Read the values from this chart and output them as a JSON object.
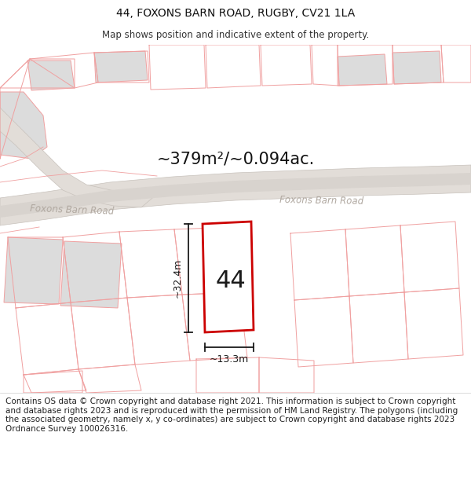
{
  "title": "44, FOXONS BARN ROAD, RUGBY, CV21 1LA",
  "subtitle": "Map shows position and indicative extent of the property.",
  "area_text": "~379m²/~0.094ac.",
  "plot_number": "44",
  "dim_width": "~13.3m",
  "dim_height": "~32.4m",
  "road_label_left": "Foxons Barn Road",
  "road_label_right": "Foxons Barn Road",
  "footer": "Contains OS data © Crown copyright and database right 2021. This information is subject to Crown copyright and database rights 2023 and is reproduced with the permission of HM Land Registry. The polygons (including the associated geometry, namely x, y co-ordinates) are subject to Crown copyright and database rights 2023 Ordnance Survey 100026316.",
  "title_fontsize": 10,
  "subtitle_fontsize": 8.5,
  "footer_fontsize": 7.5,
  "bg_color": "#f2f2f2",
  "plot_fill": "#f8f8f8",
  "plot_edge": "#cc0000",
  "road_fill": "#e2ddd8",
  "road_edge": "#c8c2bc",
  "lc": "#f0a0a0",
  "gray_fill": "#dcdcdc"
}
